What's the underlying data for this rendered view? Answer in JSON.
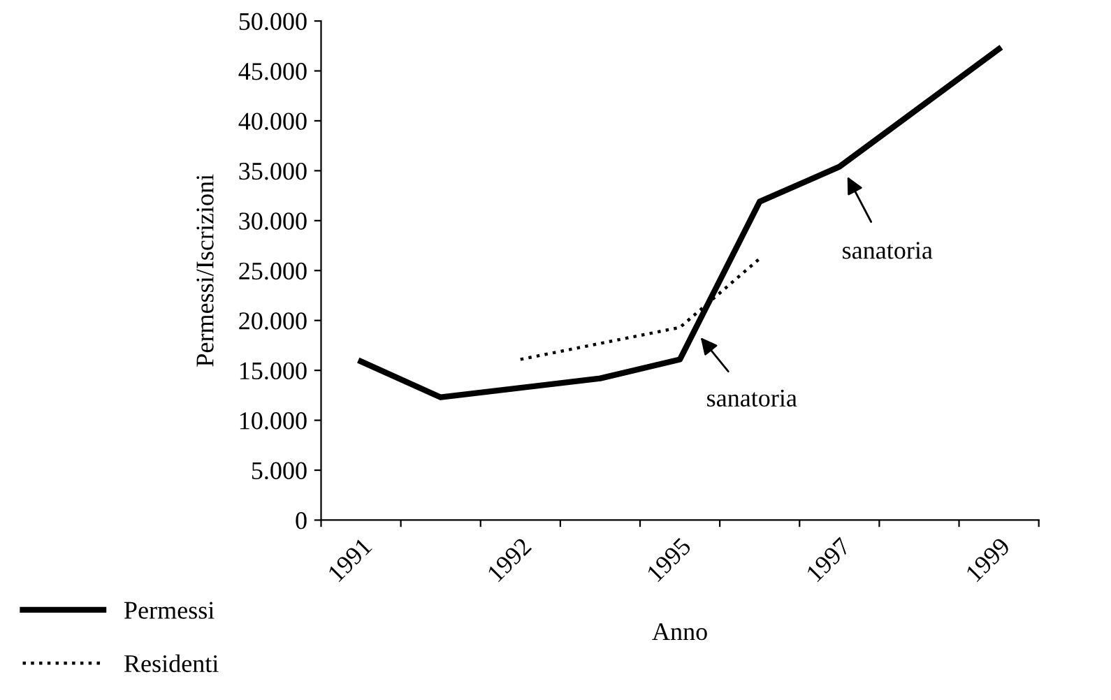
{
  "chart_data": {
    "type": "line",
    "xlabel": "Anno",
    "ylabel": "Permessi/Iscrizioni",
    "categories": [
      "1991",
      null,
      "1992",
      null,
      "1995",
      null,
      "1997",
      null,
      "1999"
    ],
    "series": [
      {
        "name": "Permessi",
        "color": "#000000",
        "line_style": "solid",
        "values": [
          15900,
          12300,
          null,
          14200,
          16100,
          31900,
          35400,
          null,
          47200
        ]
      },
      {
        "name": "Residenti",
        "color": "#000000",
        "line_style": "dotted",
        "values": [
          null,
          null,
          16100,
          null,
          19300,
          26200,
          null,
          null,
          null
        ]
      }
    ],
    "ylim": [
      0,
      50000
    ],
    "yticks": [
      {
        "value": 0,
        "label": "0"
      },
      {
        "value": 5000,
        "label": "5.000"
      },
      {
        "value": 10000,
        "label": "10.000"
      },
      {
        "value": 15000,
        "label": "15.000"
      },
      {
        "value": 20000,
        "label": "20.000"
      },
      {
        "value": 25000,
        "label": "25.000"
      },
      {
        "value": 30000,
        "label": "30.000"
      },
      {
        "value": 35000,
        "label": "35.000"
      },
      {
        "value": 40000,
        "label": "40.000"
      },
      {
        "value": 45000,
        "label": "45.000"
      },
      {
        "value": 50000,
        "label": "50.000"
      }
    ],
    "annotations": [
      "sanatoria",
      "sanatoria"
    ],
    "grid": false,
    "legend": "bottom left",
    "marker": "none"
  }
}
